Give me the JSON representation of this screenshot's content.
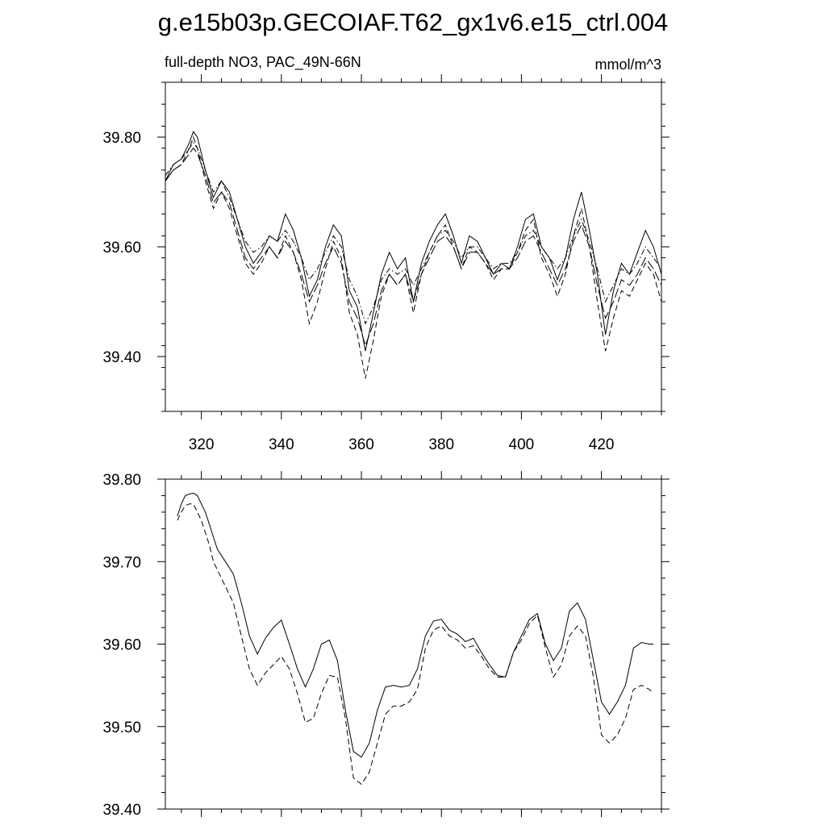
{
  "figure": {
    "title": "g.e15b03p.GECOIAF.T62_gx1v6.e15_ctrl.004"
  },
  "chart_data": [
    {
      "type": "line",
      "subtitle_left": "full-depth NO3, PAC_49N-66N",
      "subtitle_right": "mmol/m^3",
      "xlim": [
        311,
        435
      ],
      "ylim": [
        39.3,
        39.9
      ],
      "x_ticks": [
        320,
        340,
        360,
        380,
        400,
        420
      ],
      "x_tick_labels": [
        "320",
        "340",
        "360",
        "380",
        "400",
        "420"
      ],
      "y_ticks": [
        39.4,
        39.6,
        39.8
      ],
      "y_tick_labels": [
        "39.40",
        "39.60",
        "39.80"
      ],
      "grid": false,
      "series": [
        {
          "style": "solid",
          "x": [
            311,
            313,
            315,
            317,
            318,
            319,
            321,
            323,
            325,
            327,
            329,
            331,
            333,
            335,
            337,
            339,
            341,
            343,
            345,
            347,
            349,
            351,
            353,
            355,
            357,
            359,
            361,
            363,
            365,
            367,
            369,
            371,
            373,
            375,
            377,
            379,
            381,
            383,
            385,
            387,
            389,
            391,
            393,
            395,
            397,
            399,
            401,
            403,
            405,
            407,
            409,
            411,
            413,
            415,
            417,
            419,
            421,
            423,
            425,
            427,
            429,
            431,
            433,
            435
          ],
          "y": [
            39.72,
            39.75,
            39.76,
            39.79,
            39.81,
            39.8,
            39.74,
            39.69,
            39.72,
            39.7,
            39.65,
            39.6,
            39.57,
            39.59,
            39.62,
            39.61,
            39.66,
            39.63,
            39.58,
            39.51,
            39.54,
            39.6,
            39.64,
            39.62,
            39.52,
            39.49,
            39.41,
            39.48,
            39.55,
            39.59,
            39.56,
            39.58,
            39.5,
            39.57,
            39.61,
            39.64,
            39.66,
            39.62,
            39.57,
            39.62,
            39.61,
            39.58,
            39.55,
            39.57,
            39.56,
            39.6,
            39.65,
            39.66,
            39.6,
            39.58,
            39.54,
            39.58,
            39.65,
            39.7,
            39.63,
            39.55,
            39.44,
            39.52,
            39.57,
            39.55,
            39.59,
            39.63,
            39.6,
            39.55
          ]
        },
        {
          "style": "dashed",
          "x": [
            311,
            313,
            315,
            317,
            318,
            319,
            321,
            323,
            325,
            327,
            329,
            331,
            333,
            335,
            337,
            339,
            341,
            343,
            345,
            347,
            349,
            351,
            353,
            355,
            357,
            359,
            361,
            363,
            365,
            367,
            369,
            371,
            373,
            375,
            377,
            379,
            381,
            383,
            385,
            387,
            389,
            391,
            393,
            395,
            397,
            399,
            401,
            403,
            405,
            407,
            409,
            411,
            413,
            415,
            417,
            419,
            421,
            423,
            425,
            427,
            429,
            431,
            433,
            435
          ],
          "y": [
            39.72,
            39.74,
            39.75,
            39.78,
            39.8,
            39.78,
            39.72,
            39.67,
            39.7,
            39.67,
            39.62,
            39.57,
            39.55,
            39.57,
            39.6,
            39.58,
            39.62,
            39.59,
            39.54,
            39.46,
            39.5,
            39.56,
            39.61,
            39.58,
            39.48,
            39.44,
            39.36,
            39.43,
            39.51,
            39.55,
            39.53,
            39.55,
            39.48,
            39.55,
            39.59,
            39.62,
            39.64,
            39.6,
            39.56,
            39.6,
            39.59,
            39.57,
            39.54,
            39.56,
            39.56,
            39.59,
            39.63,
            39.65,
            39.58,
            39.55,
            39.51,
            39.55,
            39.62,
            39.67,
            39.6,
            39.5,
            39.41,
            39.47,
            39.52,
            39.51,
            39.54,
            39.57,
            39.55,
            39.5
          ]
        },
        {
          "style": "dashdot",
          "x": [
            311,
            313,
            315,
            317,
            318,
            319,
            321,
            323,
            325,
            327,
            329,
            331,
            333,
            335,
            337,
            339,
            341,
            343,
            345,
            347,
            349,
            351,
            353,
            355,
            357,
            359,
            361,
            363,
            365,
            367,
            369,
            371,
            373,
            375,
            377,
            379,
            381,
            383,
            385,
            387,
            389,
            391,
            393,
            395,
            397,
            399,
            401,
            403,
            405,
            407,
            409,
            411,
            413,
            415,
            417,
            419,
            421,
            423,
            425,
            427,
            429,
            431,
            433,
            435
          ],
          "y": [
            39.73,
            39.75,
            39.76,
            39.78,
            39.79,
            39.78,
            39.74,
            39.7,
            39.72,
            39.69,
            39.65,
            39.61,
            39.59,
            39.6,
            39.62,
            39.61,
            39.63,
            39.61,
            39.58,
            39.54,
            39.56,
            39.59,
            39.62,
            39.6,
            39.54,
            39.51,
            39.46,
            39.49,
            39.54,
            39.56,
            39.55,
            39.56,
            39.53,
            39.56,
            39.59,
            39.62,
            39.63,
            39.61,
            39.58,
            39.6,
            39.6,
            39.58,
            39.56,
            39.57,
            39.57,
            39.59,
            39.62,
            39.63,
            39.6,
            39.58,
            39.56,
            39.58,
            39.62,
            39.65,
            39.61,
            39.56,
            39.5,
            39.53,
            39.56,
            39.55,
            39.57,
            39.6,
            39.58,
            39.56
          ]
        },
        {
          "style": "longdash",
          "x": [
            311,
            313,
            315,
            317,
            318,
            319,
            321,
            323,
            325,
            327,
            329,
            331,
            333,
            335,
            337,
            339,
            341,
            343,
            345,
            347,
            349,
            351,
            353,
            355,
            357,
            359,
            361,
            363,
            365,
            367,
            369,
            371,
            373,
            375,
            377,
            379,
            381,
            383,
            385,
            387,
            389,
            391,
            393,
            395,
            397,
            399,
            401,
            403,
            405,
            407,
            409,
            411,
            413,
            415,
            417,
            419,
            421,
            423,
            425,
            427,
            429,
            431,
            433,
            435
          ],
          "y": [
            39.72,
            39.74,
            39.75,
            39.77,
            39.78,
            39.77,
            39.73,
            39.68,
            39.7,
            39.68,
            39.63,
            39.58,
            39.56,
            39.58,
            39.6,
            39.58,
            39.61,
            39.59,
            39.55,
            39.5,
            39.53,
            39.57,
            39.6,
            39.57,
            39.5,
            39.47,
            39.42,
            39.46,
            39.52,
            39.55,
            39.53,
            39.55,
            39.5,
            39.55,
            39.58,
            39.61,
            39.62,
            39.6,
            39.56,
            39.59,
            39.59,
            39.57,
            39.55,
            39.56,
            39.56,
            39.58,
            39.61,
            39.62,
            39.59,
            39.56,
            39.53,
            39.56,
            39.61,
            39.64,
            39.6,
            39.53,
            39.47,
            39.5,
            39.54,
            39.53,
            39.55,
            39.58,
            39.56,
            39.53
          ]
        }
      ]
    },
    {
      "type": "line",
      "xlim": [
        311,
        435
      ],
      "ylim": [
        39.4,
        39.8
      ],
      "x_ticks": [
        320,
        340,
        360,
        380,
        400,
        420
      ],
      "y_ticks": [
        39.4,
        39.5,
        39.6,
        39.7,
        39.8
      ],
      "y_tick_labels": [
        "39.40",
        "39.50",
        "39.60",
        "39.70",
        "39.80"
      ],
      "grid": false,
      "series": [
        {
          "style": "solid",
          "x": [
            314,
            315,
            316,
            317,
            318,
            319,
            320,
            321,
            322,
            323,
            324,
            326,
            328,
            330,
            332,
            334,
            336,
            338,
            340,
            342,
            344,
            346,
            348,
            350,
            352,
            354,
            356,
            358,
            360,
            362,
            364,
            366,
            368,
            370,
            372,
            374,
            376,
            378,
            380,
            382,
            384,
            386,
            388,
            390,
            392,
            394,
            396,
            398,
            400,
            402,
            404,
            406,
            408,
            410,
            412,
            414,
            416,
            418,
            420,
            422,
            424,
            426,
            428,
            430,
            432,
            433
          ],
          "y": [
            39.755,
            39.77,
            39.78,
            39.782,
            39.783,
            39.78,
            39.77,
            39.76,
            39.745,
            39.73,
            39.715,
            39.7,
            39.685,
            39.65,
            39.61,
            39.588,
            39.607,
            39.62,
            39.629,
            39.6,
            39.57,
            39.548,
            39.57,
            39.6,
            39.605,
            39.58,
            39.52,
            39.47,
            39.463,
            39.48,
            39.52,
            39.548,
            39.55,
            39.548,
            39.55,
            39.57,
            39.61,
            39.628,
            39.63,
            39.617,
            39.612,
            39.603,
            39.607,
            39.59,
            39.575,
            39.562,
            39.56,
            39.59,
            39.61,
            39.63,
            39.637,
            39.6,
            39.58,
            39.595,
            39.64,
            39.65,
            39.63,
            39.58,
            39.53,
            39.515,
            39.53,
            39.55,
            39.595,
            39.602,
            39.6,
            39.6
          ]
        },
        {
          "style": "dashed",
          "x": [
            314,
            315,
            316,
            317,
            318,
            319,
            320,
            321,
            322,
            323,
            324,
            326,
            328,
            330,
            332,
            334,
            336,
            338,
            340,
            342,
            344,
            346,
            348,
            350,
            352,
            354,
            356,
            358,
            360,
            362,
            364,
            366,
            368,
            370,
            372,
            374,
            376,
            378,
            380,
            382,
            384,
            386,
            388,
            390,
            392,
            394,
            396,
            398,
            400,
            402,
            404,
            406,
            408,
            410,
            412,
            414,
            416,
            418,
            420,
            422,
            424,
            426,
            428,
            430,
            432,
            433
          ],
          "y": [
            39.75,
            39.76,
            39.768,
            39.77,
            39.77,
            39.76,
            39.75,
            39.735,
            39.72,
            39.7,
            39.69,
            39.67,
            39.65,
            39.61,
            39.57,
            39.55,
            39.565,
            39.575,
            39.585,
            39.57,
            39.54,
            39.505,
            39.51,
            39.54,
            39.562,
            39.56,
            39.51,
            39.438,
            39.43,
            39.445,
            39.48,
            39.515,
            39.525,
            39.525,
            39.53,
            39.545,
            39.595,
            39.617,
            39.622,
            39.61,
            39.605,
            39.595,
            39.598,
            39.585,
            39.57,
            39.56,
            39.56,
            39.59,
            39.605,
            39.625,
            39.635,
            39.595,
            39.56,
            39.575,
            39.61,
            39.622,
            39.61,
            39.56,
            39.49,
            39.48,
            39.49,
            39.51,
            39.545,
            39.55,
            39.545,
            39.54
          ]
        }
      ]
    }
  ]
}
